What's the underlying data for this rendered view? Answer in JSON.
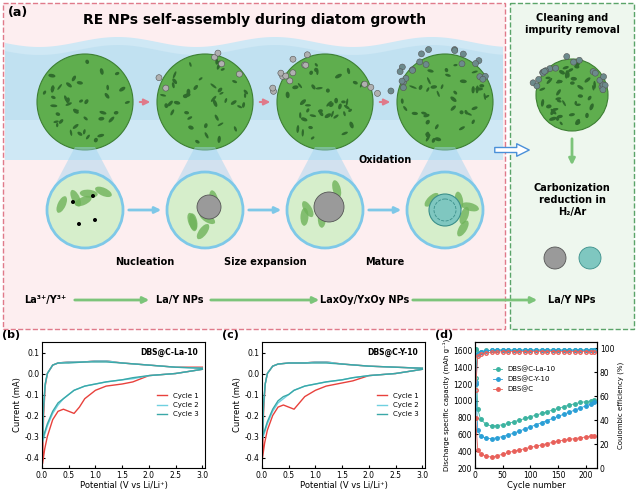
{
  "diagram": {
    "label": "(a)",
    "title": "RE NPs self-assembly during diatom growth",
    "steps": [
      "Nucleation",
      "Size expansion",
      "Mature"
    ],
    "process": "Oxidation",
    "species": [
      "La³⁺/Y³⁺",
      "La/Y NPs",
      "LaxOy/YxOy NPs"
    ],
    "treatment": {
      "cleaning": "Cleaning and impurity removal",
      "reduction": "Carbonization reduction in H₂/Ar",
      "product": "La/Y NPs"
    }
  },
  "chart_data": [
    {
      "type": "line",
      "label": "(b)",
      "annotation": "DBS@C-La-10",
      "x_label": "Potential (V vs Li/Li⁺)",
      "y_label": "Current (mA)",
      "xlim": [
        0,
        3.05
      ],
      "xticks": [
        {
          "value": 0,
          "label": "0.0"
        },
        0.5,
        {
          "value": 1,
          "label": "1.0"
        },
        1.5,
        {
          "value": 2,
          "label": "2.0"
        },
        2.5,
        {
          "value": 3,
          "label": "3.0"
        }
      ],
      "ylim": [
        -0.45,
        0.15
      ],
      "yticks": [
        -0.4,
        -0.3,
        -0.2,
        -0.1,
        {
          "value": 0,
          "label": "0.0"
        },
        0.1
      ],
      "legend": "center right",
      "x": [
        3.0,
        2.5,
        2.0,
        1.7,
        1.5,
        1.2,
        1.0,
        0.8,
        0.7,
        0.6,
        0.5,
        0.4,
        0.3,
        0.2,
        0.1,
        0.05,
        0.01,
        0.03,
        0.06,
        0.1,
        0.2,
        0.3,
        0.5,
        0.8,
        1.0,
        1.2,
        1.5,
        2.0,
        2.5,
        3.0
      ],
      "series": [
        {
          "name": "Cycle 1",
          "color": "#e8413c",
          "values": [
            0.02,
            0.0,
            -0.01,
            -0.04,
            -0.05,
            -0.06,
            -0.08,
            -0.12,
            -0.16,
            -0.19,
            -0.18,
            -0.17,
            -0.18,
            -0.22,
            -0.3,
            -0.36,
            -0.43,
            -0.2,
            -0.06,
            0.0,
            0.04,
            0.05,
            0.055,
            0.055,
            0.06,
            0.06,
            0.05,
            0.04,
            0.03,
            0.03
          ]
        },
        {
          "name": "Cycle 2",
          "color": "#6fd0e0",
          "values": [
            0.02,
            0.0,
            -0.01,
            -0.025,
            -0.03,
            -0.04,
            -0.05,
            -0.06,
            -0.07,
            -0.08,
            -0.1,
            -0.12,
            -0.15,
            -0.19,
            -0.25,
            -0.29,
            -0.33,
            -0.16,
            -0.05,
            0.0,
            0.04,
            0.05,
            0.055,
            0.055,
            0.06,
            0.06,
            0.05,
            0.04,
            0.03,
            0.025
          ]
        },
        {
          "name": "Cycle 3",
          "color": "#3aa8a8",
          "values": [
            0.02,
            0.0,
            -0.01,
            -0.02,
            -0.03,
            -0.04,
            -0.05,
            -0.06,
            -0.07,
            -0.08,
            -0.1,
            -0.12,
            -0.14,
            -0.18,
            -0.24,
            -0.28,
            -0.32,
            -0.15,
            -0.05,
            0.0,
            0.04,
            0.05,
            0.05,
            0.055,
            0.055,
            0.055,
            0.05,
            0.04,
            0.03,
            0.025
          ]
        }
      ]
    },
    {
      "type": "line",
      "label": "(c)",
      "annotation": "DBS@C-Y-10",
      "x_label": "Potential (V vs Li/Li⁺)",
      "y_label": "Current (mA)",
      "xlim": [
        0,
        3.05
      ],
      "xticks": [
        {
          "value": 0,
          "label": "0.0"
        },
        0.5,
        {
          "value": 1,
          "label": "1.0"
        },
        1.5,
        {
          "value": 2,
          "label": "2.0"
        },
        2.5,
        {
          "value": 3,
          "label": "3.0"
        }
      ],
      "ylim": [
        -0.45,
        0.15
      ],
      "yticks": [
        -0.4,
        -0.3,
        -0.2,
        -0.1,
        {
          "value": 0,
          "label": "0.0"
        },
        0.1
      ],
      "legend": "center right",
      "x": [
        3.0,
        2.5,
        2.0,
        1.7,
        1.5,
        1.2,
        1.0,
        0.8,
        0.7,
        0.6,
        0.5,
        0.4,
        0.3,
        0.2,
        0.1,
        0.05,
        0.01,
        0.03,
        0.06,
        0.1,
        0.2,
        0.3,
        0.5,
        0.8,
        1.0,
        1.2,
        1.5,
        2.0,
        2.5,
        3.0
      ],
      "series": [
        {
          "name": "Cycle 1",
          "color": "#e8413c",
          "values": [
            0.02,
            0.0,
            -0.01,
            -0.035,
            -0.045,
            -0.06,
            -0.08,
            -0.11,
            -0.14,
            -0.17,
            -0.16,
            -0.15,
            -0.16,
            -0.2,
            -0.27,
            -0.33,
            -0.4,
            -0.18,
            -0.05,
            0.0,
            0.035,
            0.045,
            0.05,
            0.05,
            0.055,
            0.055,
            0.045,
            0.035,
            0.03,
            0.025
          ]
        },
        {
          "name": "Cycle 2",
          "color": "#6fd0e0",
          "values": [
            0.02,
            0.0,
            -0.01,
            -0.02,
            -0.03,
            -0.04,
            -0.05,
            -0.06,
            -0.07,
            -0.08,
            -0.1,
            -0.12,
            -0.14,
            -0.18,
            -0.24,
            -0.28,
            -0.31,
            -0.15,
            -0.05,
            0.0,
            0.035,
            0.045,
            0.05,
            0.05,
            0.055,
            0.055,
            0.045,
            0.035,
            0.03,
            0.025
          ]
        },
        {
          "name": "Cycle 3",
          "color": "#3aa8a8",
          "values": [
            0.02,
            0.0,
            -0.01,
            -0.02,
            -0.03,
            -0.04,
            -0.05,
            -0.06,
            -0.07,
            -0.08,
            -0.1,
            -0.11,
            -0.13,
            -0.17,
            -0.23,
            -0.27,
            -0.3,
            -0.14,
            -0.05,
            0.0,
            0.035,
            0.045,
            0.05,
            0.05,
            0.05,
            0.05,
            0.045,
            0.035,
            0.03,
            0.025
          ]
        }
      ]
    },
    {
      "type": "scatter",
      "label": "(d)",
      "x_label": "Cycle number",
      "y_label": "Discharge specific capacity (mAh g⁻¹)",
      "y2_label": "Coulombic efficiency (%)",
      "xlim": [
        0,
        220
      ],
      "xticks": [
        0,
        50,
        100,
        150,
        200
      ],
      "ylim": [
        200,
        1700
      ],
      "yticks": [
        200,
        400,
        600,
        800,
        1000,
        1200,
        1400,
        1600
      ],
      "y2lim": [
        0,
        105
      ],
      "y2ticks": [
        0,
        20,
        40,
        60,
        80,
        100
      ],
      "legend": "upper left",
      "marker": "o",
      "x": [
        1,
        5,
        10,
        20,
        30,
        40,
        50,
        60,
        70,
        80,
        90,
        100,
        110,
        120,
        130,
        140,
        150,
        160,
        170,
        180,
        190,
        200,
        210,
        215
      ],
      "series": [
        {
          "name": "DBS@C-La-10",
          "color": "#3bb3a0",
          "values": [
            1620,
            900,
            780,
            720,
            700,
            705,
            715,
            730,
            750,
            770,
            790,
            810,
            830,
            850,
            870,
            890,
            910,
            930,
            950,
            965,
            980,
            990,
            1000,
            1005
          ],
          "efficiency": [
            75,
            96,
            97,
            98,
            98,
            98.5,
            98.5,
            98.5,
            98.5,
            98.5,
            98.5,
            98.5,
            98.5,
            98.5,
            98.5,
            98.5,
            98.5,
            98.5,
            98.5,
            98.5,
            98.5,
            98.5,
            98.5,
            98.5
          ]
        },
        {
          "name": "DBS@C-Y-10",
          "color": "#2a9fd6",
          "values": [
            1200,
            650,
            580,
            555,
            550,
            560,
            575,
            595,
            615,
            640,
            665,
            690,
            715,
            740,
            765,
            790,
            815,
            840,
            865,
            890,
            915,
            940,
            965,
            980
          ],
          "efficiency": [
            72,
            95,
            97,
            97.5,
            98,
            98,
            98,
            98,
            98,
            98,
            98,
            98,
            98,
            98,
            98,
            98,
            98,
            98,
            98,
            98,
            98,
            98,
            98,
            98
          ]
        },
        {
          "name": "DBS@C",
          "color": "#e8605a",
          "values": [
            800,
            420,
            370,
            340,
            330,
            345,
            365,
            385,
            400,
            415,
            430,
            445,
            460,
            475,
            490,
            505,
            520,
            530,
            540,
            550,
            560,
            570,
            580,
            585
          ],
          "efficiency": [
            65,
            93,
            95,
            96,
            96.5,
            96.5,
            97,
            97,
            97,
            97,
            97,
            97,
            97,
            97,
            97,
            97,
            97,
            97,
            97,
            97,
            97,
            97,
            97,
            97
          ]
        }
      ]
    }
  ]
}
